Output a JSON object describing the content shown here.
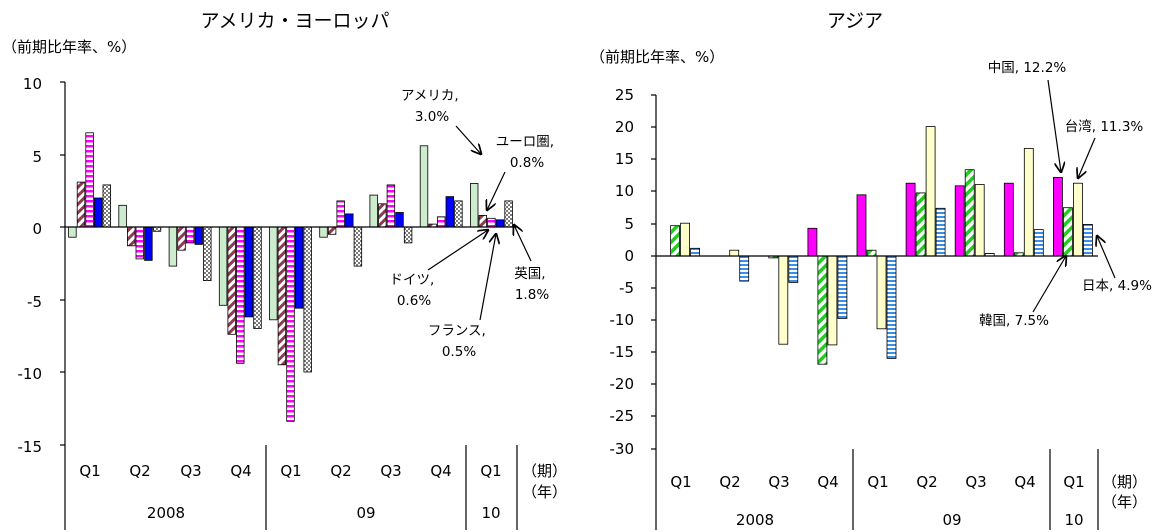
{
  "chart_data": [
    {
      "type": "bar",
      "title": "アメリカ・ヨーロッパ",
      "ylabel": "（前期比年率、%）",
      "ylim": [
        -15,
        10
      ],
      "yticks": [
        "10",
        "5",
        "0",
        "-5",
        "-10",
        "-15"
      ],
      "categories": [
        "Q1",
        "Q2",
        "Q3",
        "Q4",
        "Q1",
        "Q2",
        "Q3",
        "Q4",
        "Q1"
      ],
      "years": [
        "2008",
        "09",
        "10"
      ],
      "x_unit_quarter": "（期）",
      "x_unit_year": "（年）",
      "series": [
        {
          "name": "アメリカ",
          "values": [
            -0.7,
            1.5,
            -2.7,
            -5.4,
            -6.4,
            -0.7,
            2.2,
            5.6,
            3.0
          ]
        },
        {
          "name": "ユーロ圏",
          "values": [
            3.1,
            -1.3,
            -1.6,
            -7.4,
            -9.5,
            -0.5,
            1.6,
            0.2,
            0.8
          ]
        },
        {
          "name": "ドイツ",
          "values": [
            6.5,
            -2.2,
            -1.1,
            -9.4,
            -13.4,
            1.8,
            2.9,
            0.7,
            0.6
          ]
        },
        {
          "name": "フランス",
          "values": [
            2.0,
            -2.3,
            -1.2,
            -6.2,
            -5.6,
            0.9,
            1.0,
            2.1,
            0.5
          ]
        },
        {
          "name": "英国",
          "values": [
            2.9,
            -0.3,
            -3.7,
            -7.0,
            -10.0,
            -2.7,
            -1.1,
            1.8,
            1.8
          ]
        }
      ],
      "annotations": [
        {
          "text": [
            "アメリカ,",
            "3.0%"
          ]
        },
        {
          "text": [
            "ユーロ圏,",
            "0.8%"
          ]
        },
        {
          "text": [
            "ドイツ,",
            "0.6%"
          ]
        },
        {
          "text": [
            "フランス,",
            "0.5%"
          ]
        },
        {
          "text": [
            "英国,",
            "1.8%"
          ]
        }
      ],
      "colors": {
        "us": "#cdeccd",
        "euro": "#8c3a50",
        "germany": "#ff00ff",
        "france": "#0000ff",
        "uk": "#808080"
      }
    },
    {
      "type": "bar",
      "title": "アジア",
      "ylabel": "（前期比年率、%）",
      "ylim": [
        -30,
        25
      ],
      "yticks": [
        "25",
        "20",
        "15",
        "10",
        "5",
        "0",
        "-5",
        "-10",
        "-15",
        "-20",
        "-25",
        "-30"
      ],
      "categories": [
        "Q1",
        "Q2",
        "Q3",
        "Q4",
        "Q1",
        "Q2",
        "Q3",
        "Q4",
        "Q1"
      ],
      "years": [
        "2008",
        "09",
        "10"
      ],
      "x_unit_quarter": "（期）",
      "x_unit_year": "（年）",
      "series": [
        {
          "name": "中国",
          "values": [
            0,
            0,
            0,
            4.3,
            9.5,
            11.3,
            10.9,
            11.3,
            12.2
          ]
        },
        {
          "name": "韓国",
          "values": [
            4.7,
            0,
            -0.3,
            -16.8,
            0.9,
            9.8,
            13.4,
            0.5,
            7.5
          ]
        },
        {
          "name": "台湾",
          "values": [
            5.1,
            0.9,
            -13.7,
            -13.8,
            -11.3,
            20.1,
            11.1,
            16.7,
            11.3
          ]
        },
        {
          "name": "日本",
          "values": [
            1.2,
            -3.9,
            -4.1,
            -9.7,
            -15.9,
            7.4,
            0.4,
            4.1,
            4.9
          ]
        }
      ],
      "annotations": [
        {
          "text": [
            "中国, 12.2%"
          ]
        },
        {
          "text": [
            "台湾, 11.3%"
          ]
        },
        {
          "text": [
            "韓国, 7.5%"
          ]
        },
        {
          "text": [
            "日本, 4.9%"
          ]
        }
      ],
      "colors": {
        "china": "#ff00ff",
        "korea": "#22cc22",
        "taiwan": "#ffffcc",
        "japan": "#3a8ee6"
      }
    }
  ]
}
